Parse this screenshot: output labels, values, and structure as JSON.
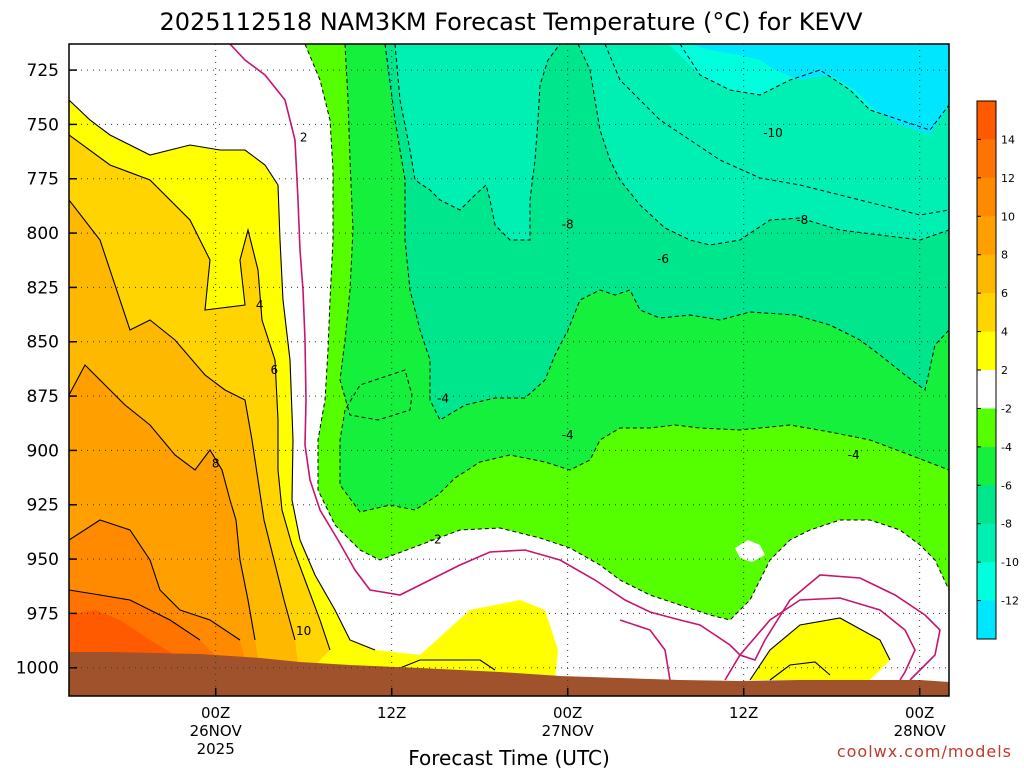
{
  "chart_data": {
    "type": "contour",
    "title": "2025112518 NAM3KM Forecast Temperature (°C) for KEVV",
    "xlabel": "Forecast Time (UTC)",
    "ylabel": "",
    "credit": "coolwx.com/models",
    "y_axis": {
      "ticks": [
        "725",
        "750",
        "775",
        "800",
        "825",
        "850",
        "875",
        "900",
        "925",
        "950",
        "975",
        "1000"
      ],
      "ylim": [
        1013,
        713
      ]
    },
    "x_axis": {
      "xlim_hours": [
        -10,
        50
      ],
      "ticks": [
        {
          "hour": 0,
          "lines": [
            "00Z",
            "26NOV",
            "2025"
          ]
        },
        {
          "hour": 12,
          "lines": [
            "12Z"
          ]
        },
        {
          "hour": 24,
          "lines": [
            "00Z",
            "27NOV"
          ]
        },
        {
          "hour": 36,
          "lines": [
            "12Z"
          ]
        },
        {
          "hour": 48,
          "lines": [
            "00Z",
            "28NOV"
          ]
        }
      ]
    },
    "grid": true,
    "colorbar": {
      "ticks": [
        "14",
        "12",
        "10",
        "8",
        "6",
        "4",
        "2",
        "-2",
        "-4",
        "-6",
        "-8",
        "-10",
        "-12"
      ],
      "colors": {
        "gt14": "#ff5a00",
        "12_14": "#ff7400",
        "10_12": "#ff8a00",
        "8_10": "#ffa000",
        "6_8": "#ffb800",
        "4_6": "#ffd400",
        "2_4": "#ffff00",
        "m2_2": "#ffffff",
        "m4_m2": "#55ff00",
        "m6_m4": "#14f03c",
        "m8_m6": "#00e68c",
        "m10_m8": "#00f0b4",
        "m12_m10": "#00ffdc",
        "lt_m12": "#00e6ff"
      }
    },
    "contour_labels": [
      {
        "text": "2",
        "hour": 6.0,
        "p": 756
      },
      {
        "text": "4",
        "hour": 3.0,
        "p": 833
      },
      {
        "text": "6",
        "hour": 4.0,
        "p": 863
      },
      {
        "text": "8",
        "hour": 0.0,
        "p": 906
      },
      {
        "text": "10",
        "hour": 6.0,
        "p": 983
      },
      {
        "text": "-2",
        "hour": 15.0,
        "p": 941
      },
      {
        "text": "-4",
        "hour": 15.5,
        "p": 876
      },
      {
        "text": "-4",
        "hour": 24.0,
        "p": 893
      },
      {
        "text": "-4",
        "hour": 43.5,
        "p": 902
      },
      {
        "text": "-6",
        "hour": 30.5,
        "p": 812
      },
      {
        "text": "-8",
        "hour": 24.0,
        "p": 796
      },
      {
        "text": "-8",
        "hour": 40.0,
        "p": 794
      },
      {
        "text": "-10",
        "hour": 38.0,
        "p": 754
      }
    ],
    "ground_color": "#a0522d"
  }
}
